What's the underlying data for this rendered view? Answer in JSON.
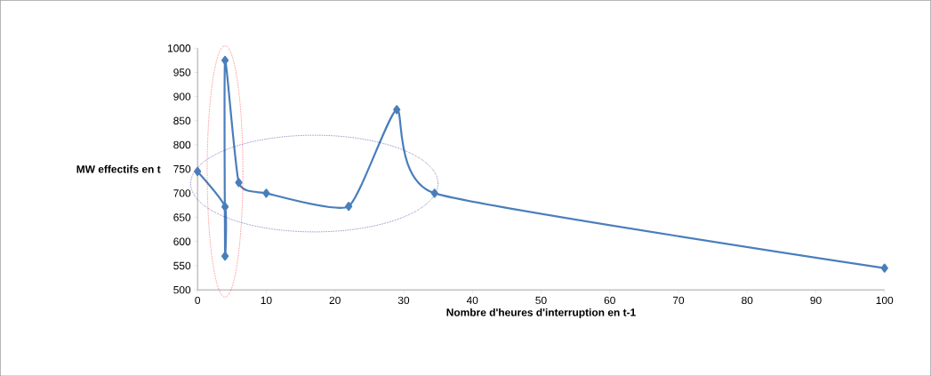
{
  "chart_data": {
    "type": "line",
    "xlabel": "Nombre d'heures d'interruption en t-1",
    "ylabel": "MW effectifs en t",
    "xlim": [
      0,
      100
    ],
    "xticks": [
      0,
      10,
      20,
      30,
      40,
      50,
      60,
      70,
      80,
      90,
      100
    ],
    "ylim": [
      500,
      1000
    ],
    "yticks": [
      500,
      550,
      600,
      650,
      700,
      750,
      800,
      850,
      900,
      950,
      1000
    ],
    "series": [
      {
        "color": "#4a7ebb",
        "x": [
          0,
          4,
          4,
          4,
          6,
          10,
          22,
          29,
          34.5,
          100
        ],
        "values": [
          745,
          672,
          570,
          975,
          722,
          700,
          673,
          873,
          700,
          545
        ]
      }
    ],
    "marker": "diamond",
    "line_style": "solid"
  }
}
